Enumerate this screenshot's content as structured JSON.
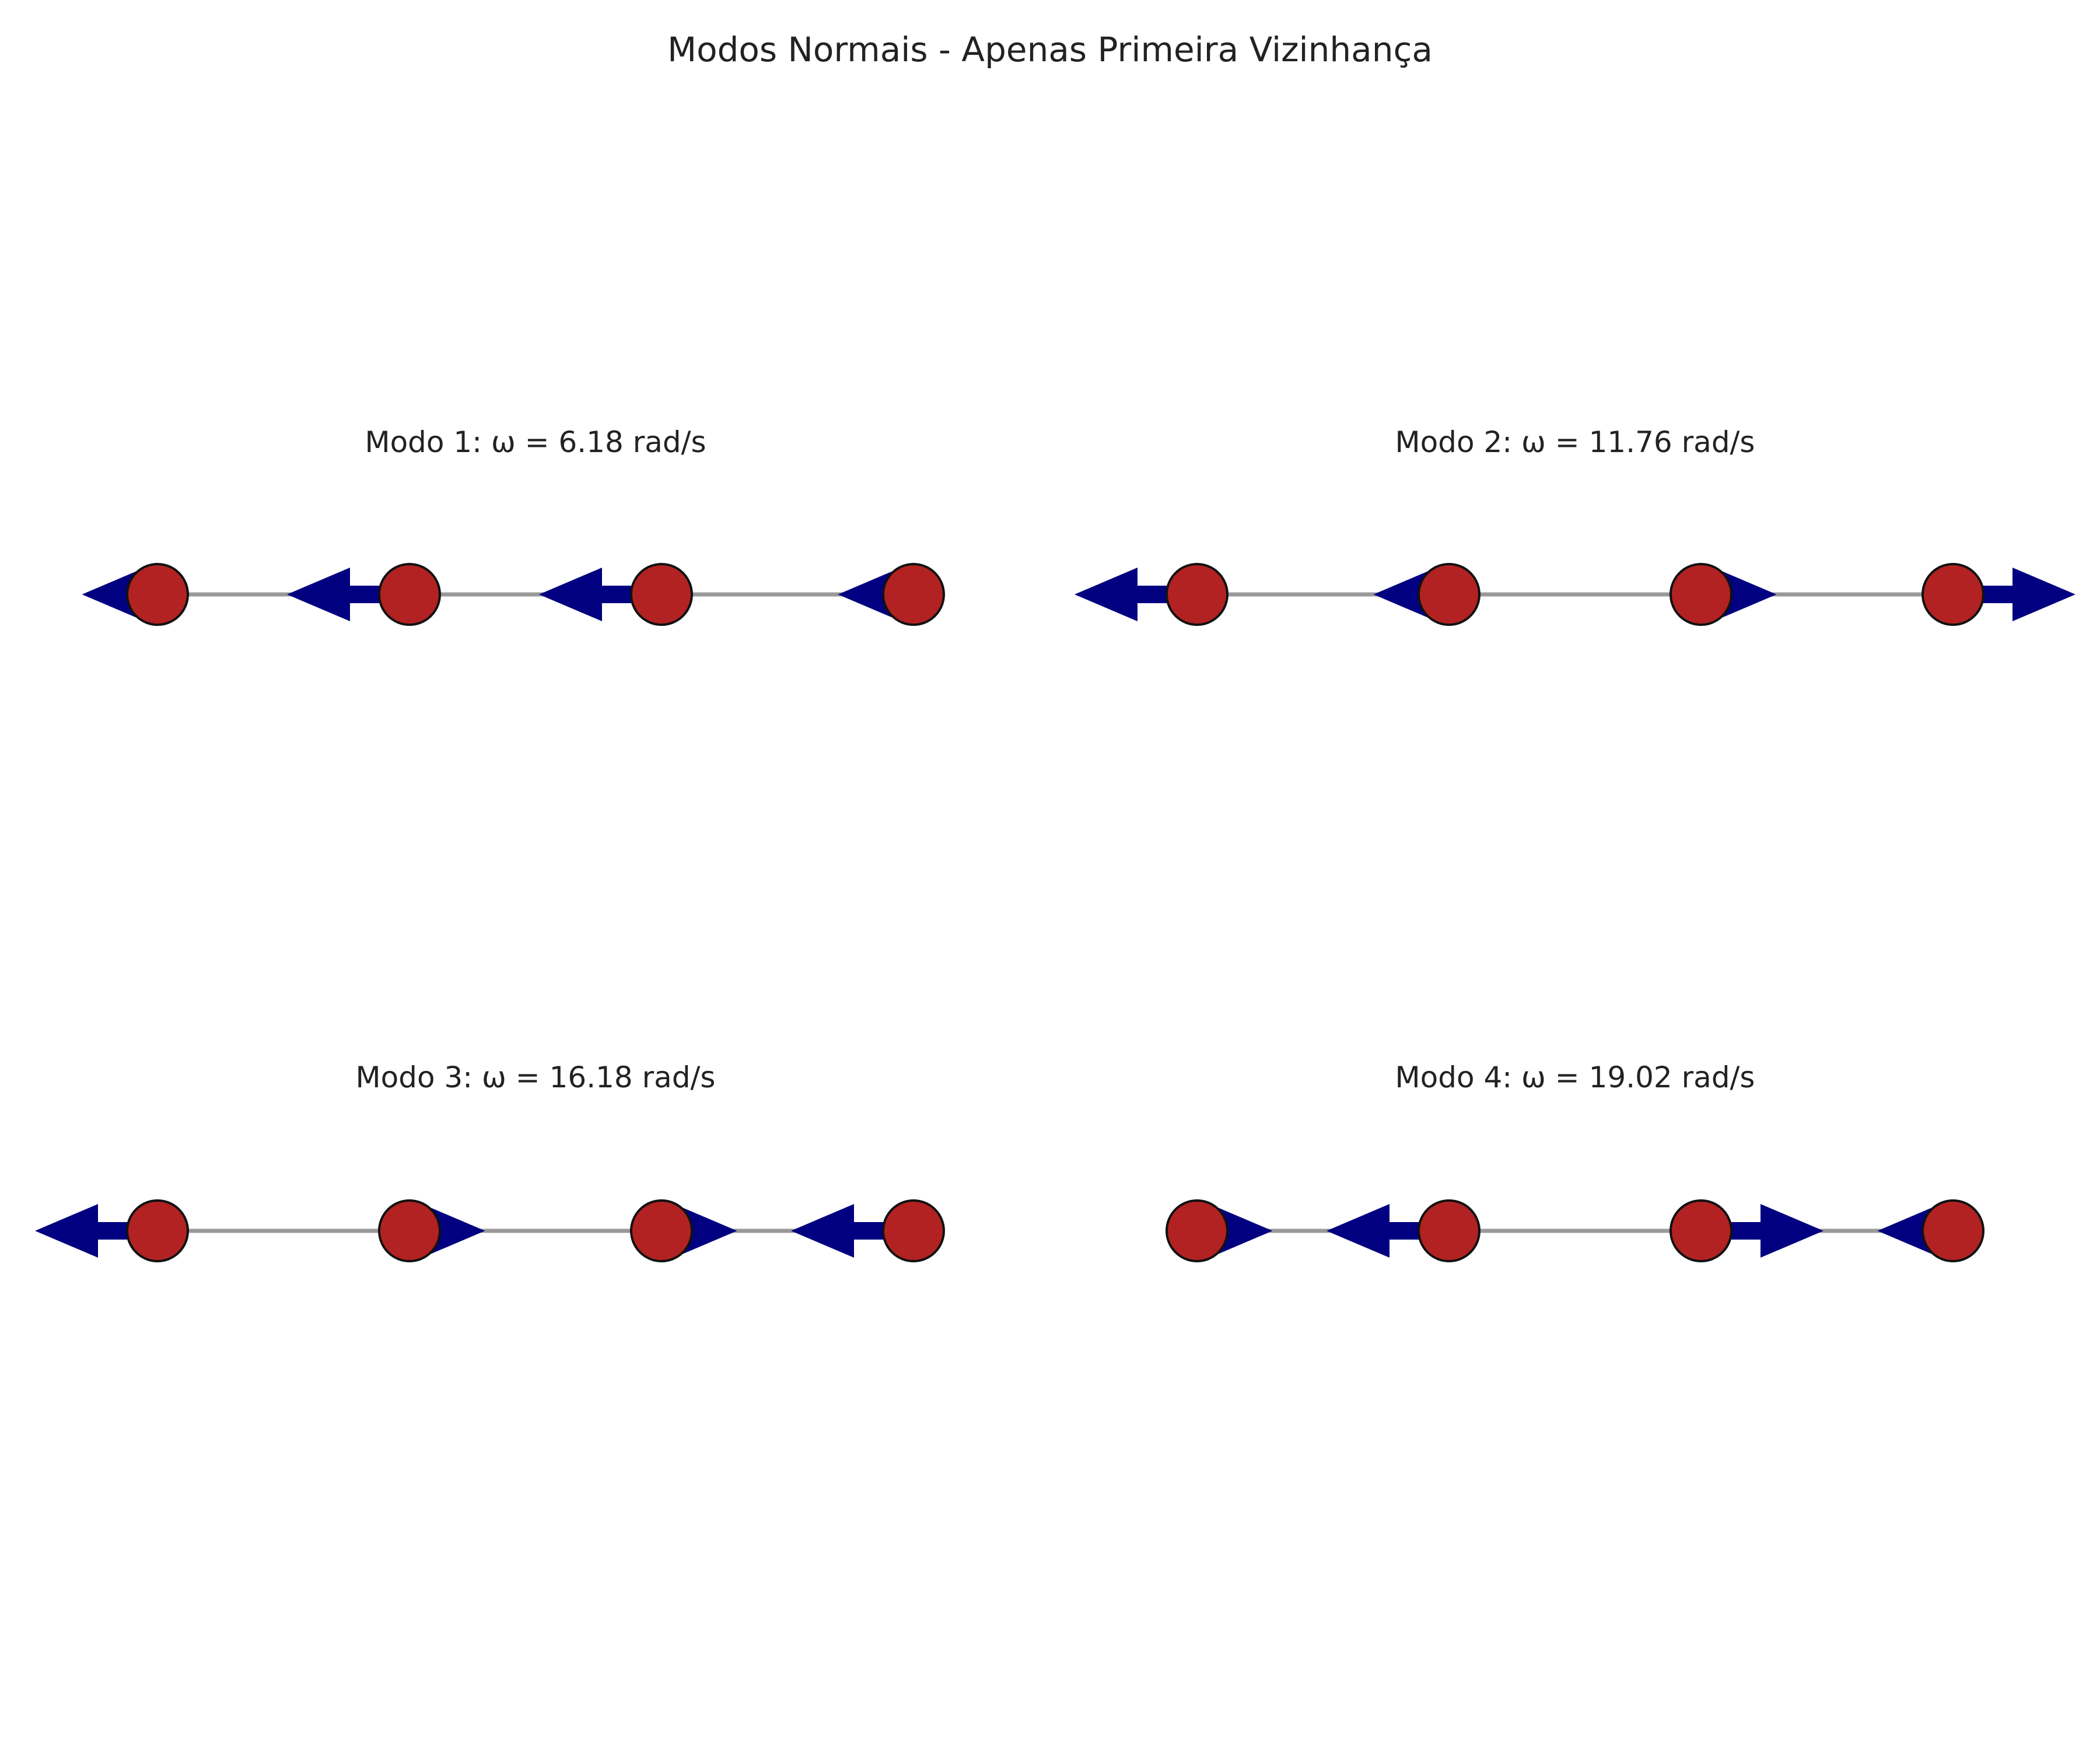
{
  "figure": {
    "title": "Modos Normais - Apenas Primeira Vizinhança"
  },
  "colors": {
    "mass_fill": "#b22222",
    "mass_stroke": "#111111",
    "arrow": "#000080",
    "spring": "#999999",
    "text": "#222222"
  },
  "modes": [
    {
      "title": "Modo 1: ω = 6.18 rad/s",
      "displacements": [
        -0.37,
        -0.6,
        -0.6,
        -0.37
      ]
    },
    {
      "title": "Modo 2: ω = 11.76 rad/s",
      "displacements": [
        -0.6,
        -0.37,
        0.37,
        0.6
      ]
    },
    {
      "title": "Modo 3: ω = 16.18 rad/s",
      "displacements": [
        -0.6,
        0.37,
        0.37,
        -0.6
      ]
    },
    {
      "title": "Modo 4: ω = 19.02 rad/s",
      "displacements": [
        0.37,
        -0.6,
        0.6,
        -0.37
      ]
    }
  ]
}
